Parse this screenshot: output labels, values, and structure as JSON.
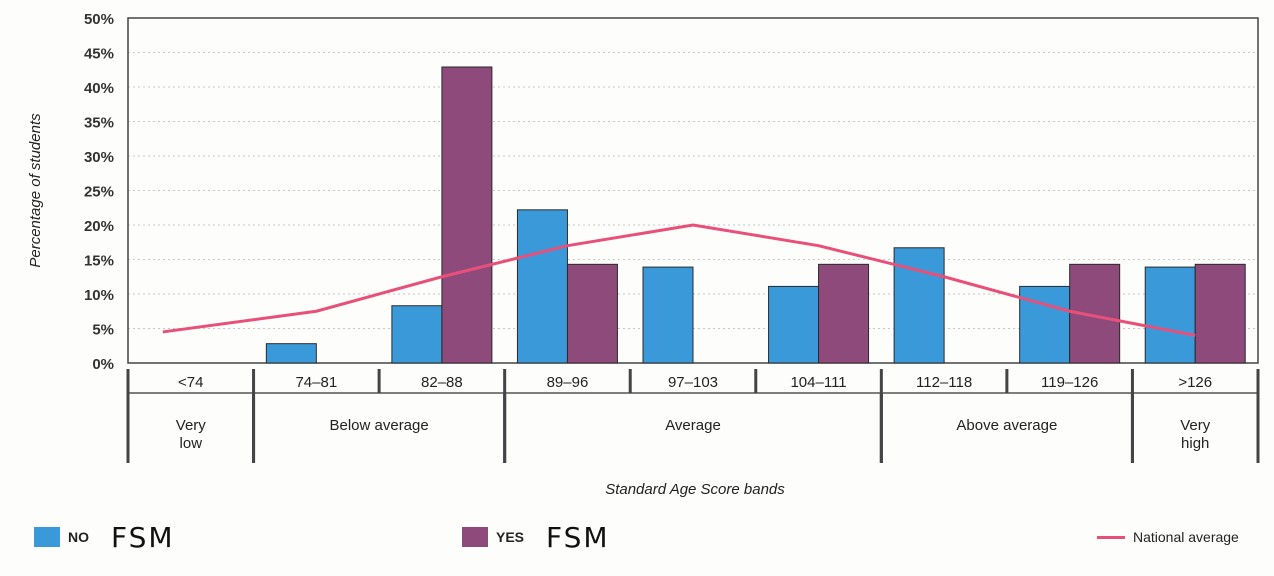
{
  "chart_data": {
    "type": "bar",
    "ylabel": "Percentage of students",
    "xlabel": "Standard Age Score bands",
    "ylim": [
      0,
      50
    ],
    "yticks": [
      "0%",
      "5%",
      "10%",
      "15%",
      "20%",
      "25%",
      "30%",
      "35%",
      "40%",
      "45%",
      "50%"
    ],
    "grid": true,
    "categories": [
      "<74",
      "74–81",
      "82–88",
      "89–96",
      "97–103",
      "104–111",
      "112–118",
      "119–126",
      ">126"
    ],
    "groups": [
      {
        "label": "Very low",
        "lines": [
          "Very",
          "low"
        ],
        "from": 0,
        "to": 0
      },
      {
        "label": "Below average",
        "lines": [
          "Below average"
        ],
        "from": 1,
        "to": 2
      },
      {
        "label": "Average",
        "lines": [
          "Average"
        ],
        "from": 3,
        "to": 5
      },
      {
        "label": "Above average",
        "lines": [
          "Above average"
        ],
        "from": 6,
        "to": 7
      },
      {
        "label": "Very high",
        "lines": [
          "Very",
          "high"
        ],
        "from": 8,
        "to": 8
      }
    ],
    "series": [
      {
        "name": "NO",
        "color": "#3a9ad9",
        "values": [
          0,
          2.8,
          8.3,
          22.2,
          13.9,
          11.1,
          16.7,
          11.1,
          13.9
        ]
      },
      {
        "name": "YES",
        "color": "#8e4a7a",
        "values": [
          0,
          0,
          42.9,
          14.3,
          0,
          14.3,
          0,
          14.3,
          14.3
        ]
      }
    ],
    "line": {
      "name": "National average",
      "color": "#e8507a",
      "values": [
        4.5,
        7.5,
        12.5,
        17,
        20,
        17,
        12.5,
        7.5,
        4
      ]
    },
    "legend_position": "bottom"
  },
  "legend": {
    "no_label": "NO",
    "no_note": "FSM",
    "yes_label": "YES",
    "yes_note": "FSM",
    "line_label": "National average"
  }
}
